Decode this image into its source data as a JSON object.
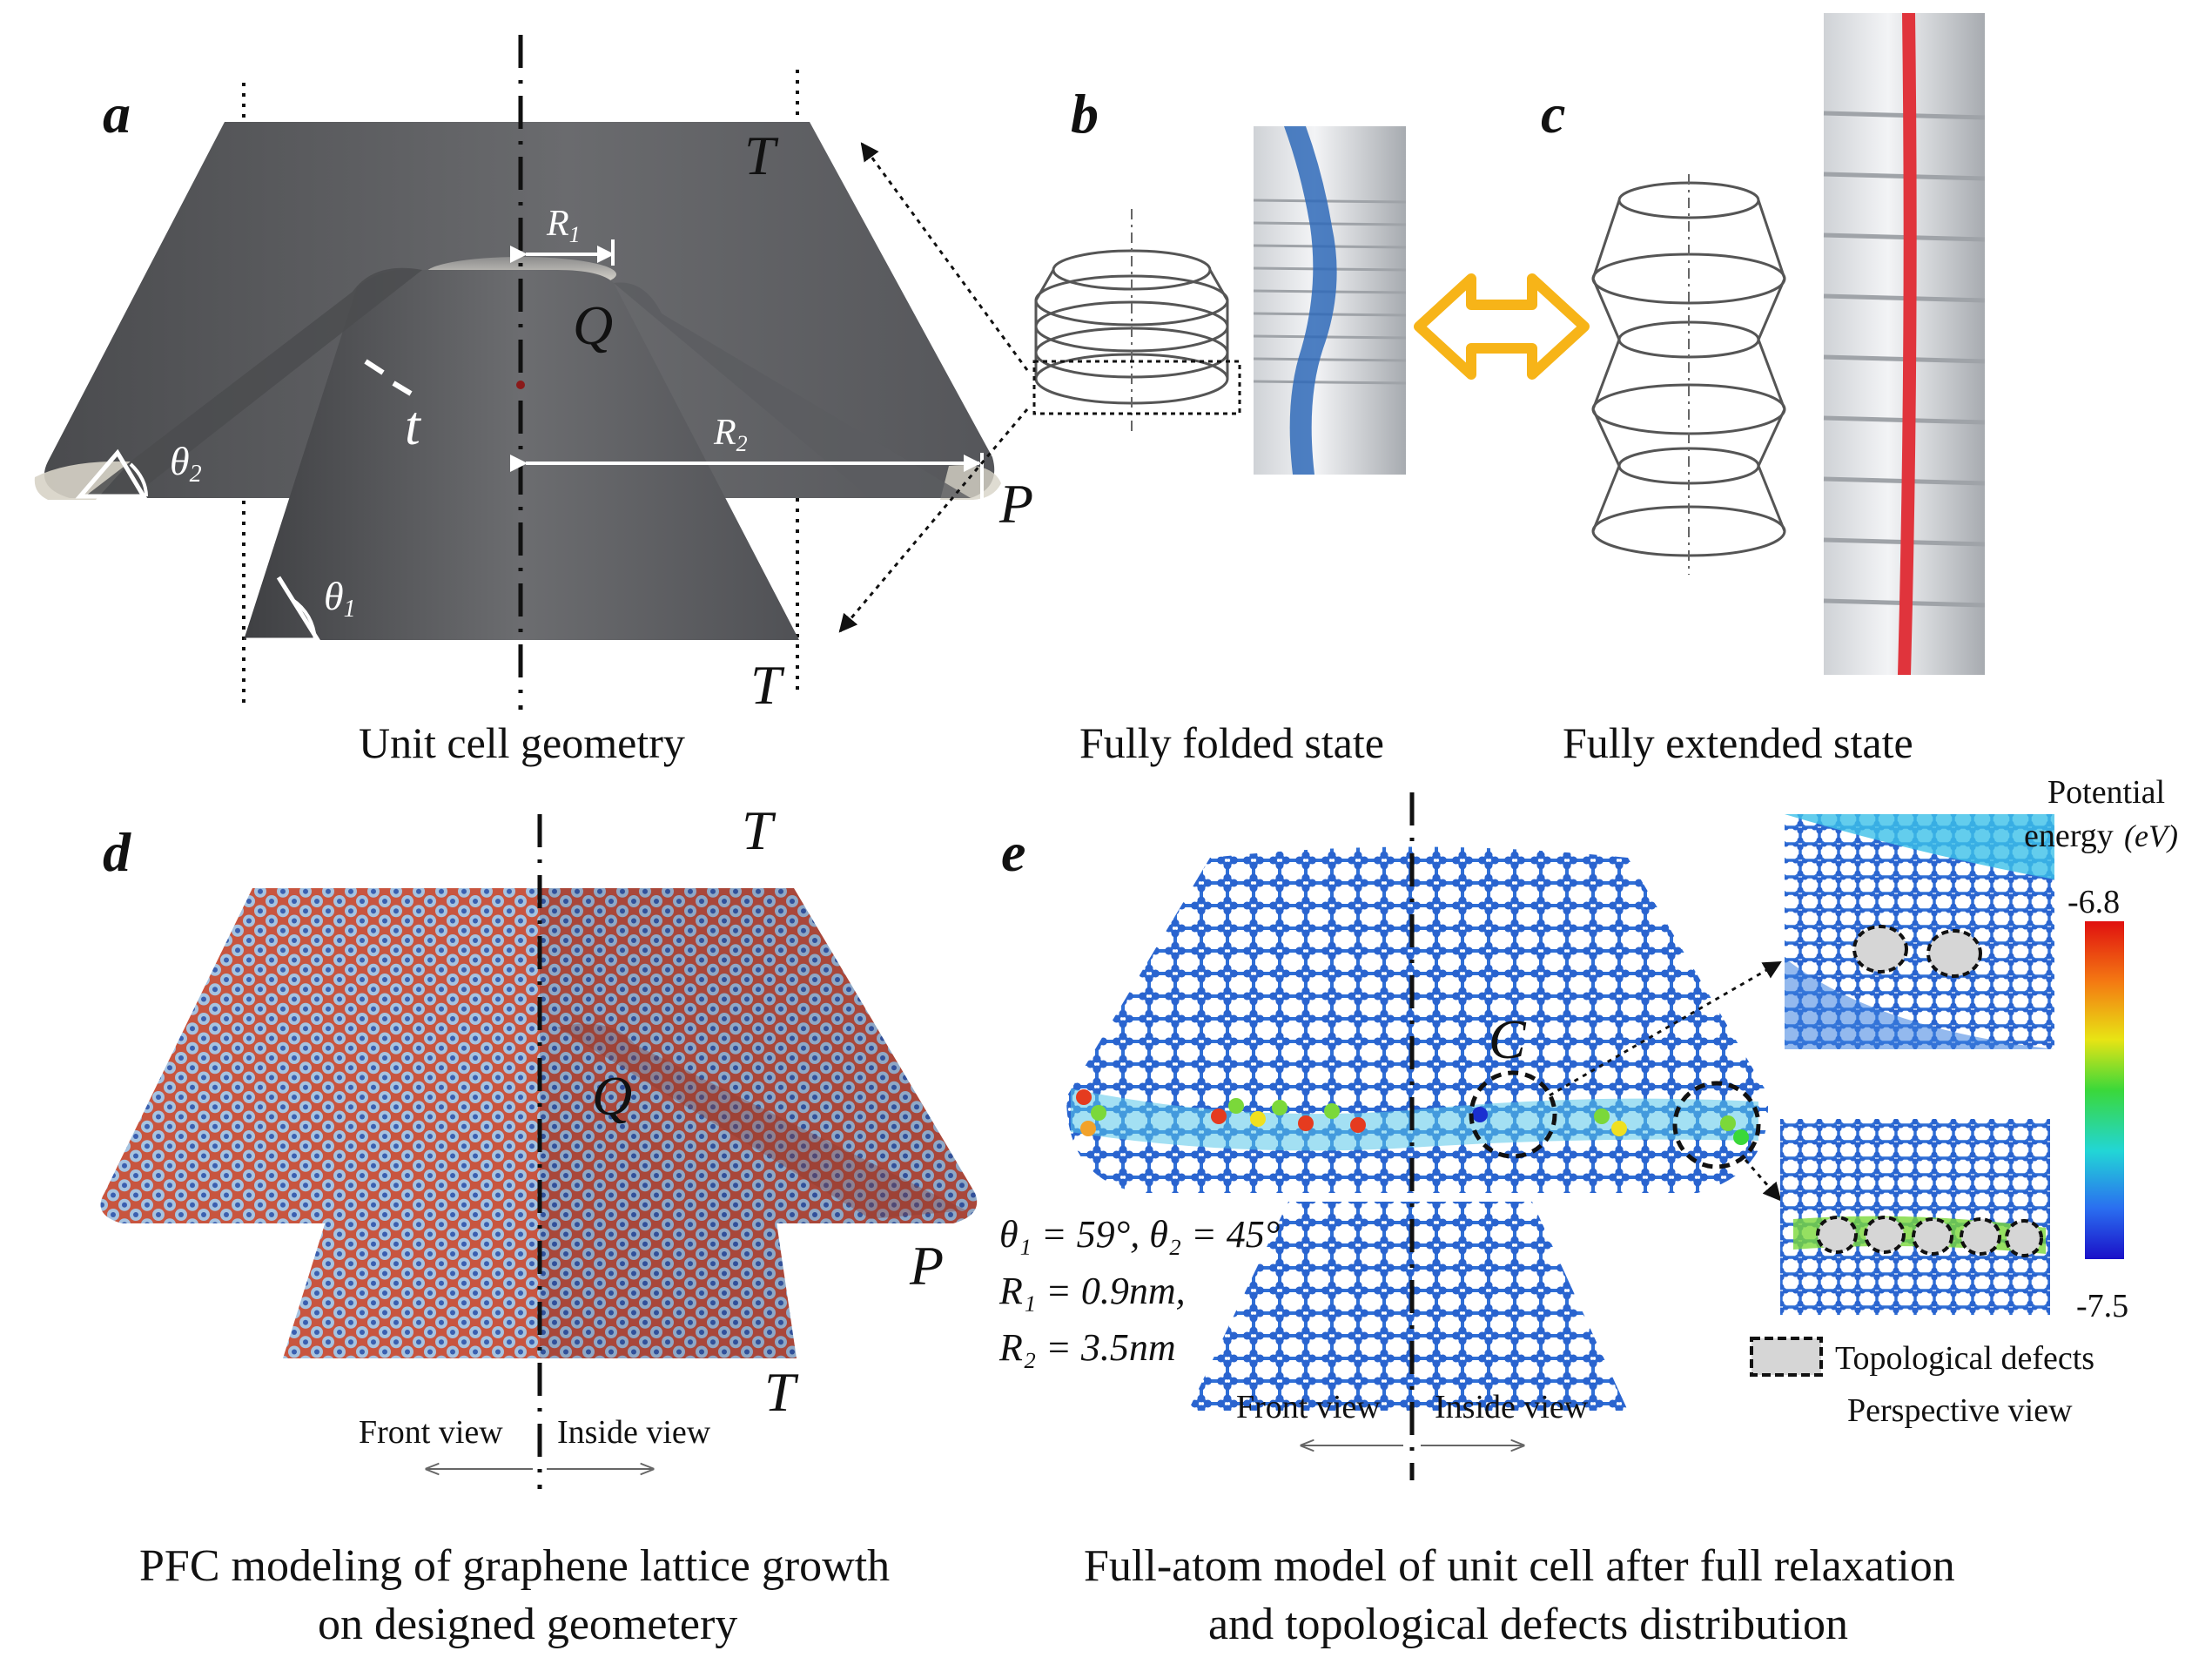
{
  "panels": {
    "a": {
      "letter": "a",
      "caption": "Unit cell geometry",
      "labels": {
        "T_top": "T",
        "T_bottom": "T",
        "Q": "Q",
        "P": "P",
        "t": "t",
        "R1": "R",
        "R1_sub": "1",
        "R2": "R",
        "R2_sub": "2",
        "theta1": "θ",
        "theta1_sub": "1",
        "theta2": "θ",
        "theta2_sub": "2"
      }
    },
    "b": {
      "letter": "b",
      "caption": "Fully folded state"
    },
    "c": {
      "letter": "c",
      "caption": "Fully extended state"
    },
    "d": {
      "letter": "d",
      "labels": {
        "T_top": "T",
        "T_bottom": "T",
        "Q": "Q",
        "P": "P",
        "front_view": "Front view",
        "inside_view": "Inside view"
      },
      "caption_line1": "PFC modeling of graphene lattice growth",
      "caption_line2": "on designed geometery"
    },
    "e": {
      "letter": "e",
      "labels": {
        "C": "C",
        "front_view": "Front view",
        "inside_view": "Inside view"
      },
      "params": {
        "line1": "θ₁ = 59°, θ₂ = 45°",
        "line2": "R₁ = 0.9nm,",
        "line3": "R₂ = 3.5nm"
      },
      "colorbar": {
        "title_line1": "Potential",
        "title_line2": "energy",
        "unit": "(eV)",
        "max_label": "-6.8",
        "min_label": "-7.5"
      },
      "legend": {
        "defects": "Topological defects",
        "perspective": "Perspective view"
      },
      "caption_line1": "Full-atom model of unit cell after full relaxation",
      "caption_line2": "and topological defects distribution"
    }
  },
  "colors": {
    "surface_gray": "#5f6062",
    "surface_dark": "#45464a",
    "arrow_orange": "#f7b418",
    "pfc_red": "#c8553f",
    "atom_blue": "#2f6fd6",
    "stripe_blue": "#2f6ab8",
    "stripe_red": "#e0343c"
  }
}
